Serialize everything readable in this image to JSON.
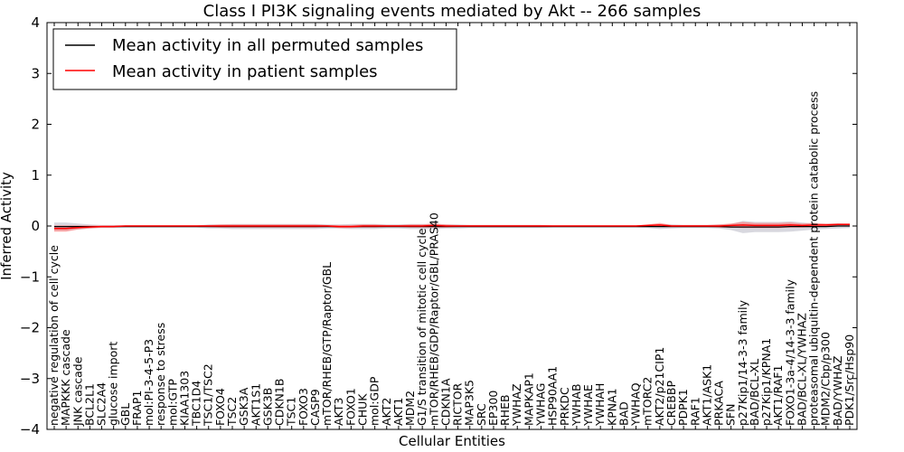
{
  "chart_data": {
    "type": "line",
    "title": "Class I PI3K signaling events mediated by Akt -- 266 samples",
    "xlabel": "Cellular Entities",
    "ylabel": "Inferred Activity",
    "ylim": [
      -4,
      4
    ],
    "yticks": [
      -4,
      -3,
      -2,
      -1,
      0,
      1,
      2,
      3,
      4
    ],
    "ytick_labels": [
      "−4",
      "−3",
      "−2",
      "−1",
      "0",
      "1",
      "2",
      "3",
      "4"
    ],
    "grid": false,
    "legend_position": "top-left",
    "colors": {
      "permuted": "#000000",
      "patient": "#ff0000",
      "patient_band": "#ff6b6b",
      "permuted_band": "#c8c8d2"
    },
    "categories": [
      "negative regulation of cell cycle",
      "MAPKKK cascade",
      "JNK cascade",
      "BCL2L1",
      "SLC2A4",
      "glucose import",
      "GBL",
      "FRAP1",
      "mol:PI-3-4-5-P3",
      "response to stress",
      "mol:GTP",
      "KIAA1303",
      "TBC1D4",
      "TSC1/TSC2",
      "FOXO4",
      "TSC2",
      "GSK3A",
      "AKT1S1",
      "GSK3B",
      "CDKN1B",
      "TSC1",
      "FOXO3",
      "CASP9",
      "mTOR/RHEB/GTP/Raptor/GBL",
      "AKT3",
      "FOXO1",
      "CHUK",
      "mol:GDP",
      "AKT2",
      "AKT1",
      "MDM2",
      "G1/S transition of mitotic cell cycle",
      "mTOR/RHEB/GDP/Raptor/GBL/PRAS40",
      "CDKN1A",
      "RICTOR",
      "MAP3K5",
      "SRC",
      "EP300",
      "RHEB",
      "YWHAZ",
      "MAPKAP1",
      "YWHAG",
      "HSP90AA1",
      "PRKDC",
      "YWHAB",
      "YWHAE",
      "YWHAH",
      "KPNA1",
      "BAD",
      "YWHAQ",
      "mTORC2",
      "AKT2/p21CIP1",
      "CREBBP",
      "PDPK1",
      "RAF1",
      "AKT1/ASK1",
      "PRKACA",
      "SFN",
      "p27Kip1/14-3-3 family",
      "BAD/BCL-XL",
      "p27Kip1/KPNA1",
      "AKT1/RAF1",
      "FOXO1-3a-4/14-3-3 family",
      "BAD/BCL-XL/YWHAZ",
      "proteasomal ubiquitin-dependent protein catabolic process",
      "MDM2/Cbp/p300",
      "BAD/YWHAZ",
      "PDK1/Src/Hsp90"
    ],
    "series": [
      {
        "name": "Mean activity in all permuted samples",
        "values": [
          -0.01,
          -0.01,
          -0.01,
          -0.01,
          -0.01,
          -0.01,
          -0.01,
          -0.01,
          -0.01,
          -0.01,
          -0.01,
          -0.01,
          -0.01,
          -0.01,
          -0.01,
          -0.01,
          -0.01,
          -0.01,
          -0.01,
          -0.01,
          -0.01,
          -0.01,
          -0.01,
          -0.01,
          -0.01,
          -0.01,
          -0.01,
          -0.01,
          -0.01,
          -0.01,
          -0.01,
          -0.01,
          -0.01,
          -0.01,
          -0.01,
          -0.01,
          -0.01,
          -0.01,
          -0.01,
          -0.01,
          -0.01,
          -0.01,
          -0.01,
          -0.01,
          -0.01,
          -0.01,
          -0.01,
          -0.01,
          -0.01,
          -0.01,
          -0.01,
          -0.01,
          -0.01,
          -0.01,
          -0.01,
          -0.01,
          -0.01,
          -0.02,
          -0.02,
          -0.02,
          -0.02,
          -0.02,
          -0.01,
          -0.01,
          -0.01,
          -0.01,
          0.0,
          0.0
        ],
        "band": [
          0.08,
          0.08,
          0.06,
          0.04,
          0.03,
          0.03,
          0.02,
          0.02,
          0.02,
          0.02,
          0.02,
          0.02,
          0.02,
          0.04,
          0.04,
          0.05,
          0.05,
          0.05,
          0.05,
          0.05,
          0.05,
          0.05,
          0.05,
          0.04,
          0.04,
          0.05,
          0.05,
          0.05,
          0.04,
          0.04,
          0.05,
          0.05,
          0.05,
          0.04,
          0.04,
          0.03,
          0.03,
          0.03,
          0.03,
          0.03,
          0.03,
          0.03,
          0.02,
          0.02,
          0.02,
          0.02,
          0.02,
          0.02,
          0.02,
          0.02,
          0.03,
          0.05,
          0.04,
          0.03,
          0.03,
          0.03,
          0.04,
          0.06,
          0.12,
          0.1,
          0.1,
          0.1,
          0.1,
          0.08,
          0.06,
          0.05,
          0.05,
          0.04
        ]
      },
      {
        "name": "Mean activity in patient samples",
        "values": [
          -0.05,
          -0.05,
          -0.03,
          -0.02,
          -0.01,
          -0.01,
          0.0,
          0.0,
          0.0,
          0.0,
          0.0,
          0.0,
          0.0,
          0.0,
          0.0,
          0.0,
          0.0,
          0.0,
          0.0,
          0.0,
          0.0,
          0.0,
          0.0,
          0.0,
          -0.01,
          -0.01,
          0.0,
          0.0,
          0.0,
          0.0,
          0.0,
          0.0,
          0.01,
          0.0,
          0.0,
          0.0,
          0.0,
          0.0,
          0.0,
          0.0,
          0.0,
          0.0,
          0.0,
          0.0,
          0.0,
          0.0,
          0.0,
          0.0,
          0.0,
          0.0,
          0.01,
          0.02,
          0.0,
          0.0,
          0.0,
          0.0,
          0.0,
          0.01,
          0.02,
          0.01,
          0.01,
          0.01,
          0.02,
          0.01,
          0.02,
          0.02,
          0.03,
          0.03
        ],
        "band": [
          0.06,
          0.06,
          0.04,
          0.03,
          0.02,
          0.02,
          0.01,
          0.01,
          0.01,
          0.01,
          0.01,
          0.01,
          0.01,
          0.02,
          0.03,
          0.03,
          0.03,
          0.03,
          0.03,
          0.03,
          0.03,
          0.03,
          0.03,
          0.02,
          0.03,
          0.03,
          0.03,
          0.03,
          0.02,
          0.02,
          0.03,
          0.03,
          0.04,
          0.03,
          0.02,
          0.02,
          0.02,
          0.02,
          0.02,
          0.02,
          0.02,
          0.02,
          0.01,
          0.01,
          0.01,
          0.01,
          0.01,
          0.01,
          0.01,
          0.01,
          0.02,
          0.04,
          0.02,
          0.02,
          0.02,
          0.02,
          0.03,
          0.04,
          0.06,
          0.05,
          0.05,
          0.05,
          0.05,
          0.04,
          0.04,
          0.03,
          0.02,
          0.02
        ]
      }
    ]
  }
}
